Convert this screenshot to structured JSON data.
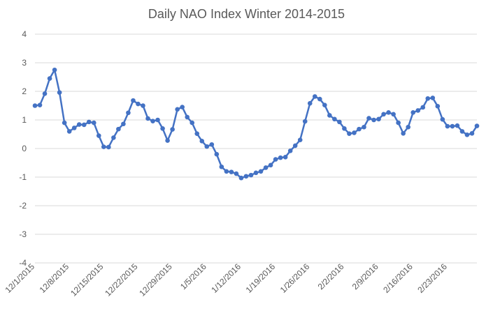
{
  "chart_data": {
    "type": "line",
    "title": "Daily NAO Index Winter 2014-2015",
    "xlabel": "",
    "ylabel": "",
    "ylim": [
      -4,
      4
    ],
    "yticks": [
      "4",
      "3",
      "2",
      "1",
      "0",
      "-1",
      "-2",
      "-3",
      "-4"
    ],
    "grid": true,
    "legend": "none",
    "x_tick_labels": [
      "12/1/2015",
      "12/8/2015",
      "12/15/2015",
      "12/22/2015",
      "12/29/2015",
      "1/5/2016",
      "1/12/2016",
      "1/19/2016",
      "1/26/2016",
      "2/2/2016",
      "2/9/2016",
      "2/16/2016",
      "2/23/2016"
    ],
    "x": [
      "12/1/2015",
      "12/2/2015",
      "12/3/2015",
      "12/4/2015",
      "12/5/2015",
      "12/6/2015",
      "12/7/2015",
      "12/8/2015",
      "12/9/2015",
      "12/10/2015",
      "12/11/2015",
      "12/12/2015",
      "12/13/2015",
      "12/14/2015",
      "12/15/2015",
      "12/16/2015",
      "12/17/2015",
      "12/18/2015",
      "12/19/2015",
      "12/20/2015",
      "12/21/2015",
      "12/22/2015",
      "12/23/2015",
      "12/24/2015",
      "12/25/2015",
      "12/26/2015",
      "12/27/2015",
      "12/28/2015",
      "12/29/2015",
      "12/30/2015",
      "12/31/2015",
      "1/1/2016",
      "1/2/2016",
      "1/3/2016",
      "1/4/2016",
      "1/5/2016",
      "1/6/2016",
      "1/7/2016",
      "1/8/2016",
      "1/9/2016",
      "1/10/2016",
      "1/11/2016",
      "1/12/2016",
      "1/13/2016",
      "1/14/2016",
      "1/15/2016",
      "1/16/2016",
      "1/17/2016",
      "1/18/2016",
      "1/19/2016",
      "1/20/2016",
      "1/21/2016",
      "1/22/2016",
      "1/23/2016",
      "1/24/2016",
      "1/25/2016",
      "1/26/2016",
      "1/27/2016",
      "1/28/2016",
      "1/29/2016",
      "1/30/2016",
      "1/31/2016",
      "2/1/2016",
      "2/2/2016",
      "2/3/2016",
      "2/4/2016",
      "2/5/2016",
      "2/6/2016",
      "2/7/2016",
      "2/8/2016",
      "2/9/2016",
      "2/10/2016",
      "2/11/2016",
      "2/12/2016",
      "2/13/2016",
      "2/14/2016",
      "2/15/2016",
      "2/16/2016",
      "2/17/2016",
      "2/18/2016",
      "2/19/2016",
      "2/20/2016",
      "2/21/2016",
      "2/22/2016",
      "2/23/2016",
      "2/24/2016",
      "2/25/2016",
      "2/26/2016",
      "2/27/2016",
      "2/28/2016",
      "2/29/2016"
    ],
    "series": [
      {
        "values": [
          1.5,
          1.52,
          1.92,
          2.45,
          2.75,
          1.96,
          0.9,
          0.6,
          0.72,
          0.84,
          0.83,
          0.93,
          0.9,
          0.45,
          0.06,
          0.05,
          0.38,
          0.68,
          0.86,
          1.25,
          1.68,
          1.56,
          1.5,
          1.05,
          0.96,
          1.0,
          0.7,
          0.28,
          0.67,
          1.37,
          1.45,
          1.1,
          0.9,
          0.52,
          0.26,
          0.07,
          0.14,
          -0.2,
          -0.64,
          -0.8,
          -0.82,
          -0.88,
          -1.03,
          -0.97,
          -0.93,
          -0.85,
          -0.8,
          -0.67,
          -0.58,
          -0.38,
          -0.32,
          -0.3,
          -0.08,
          0.1,
          0.3,
          0.95,
          1.58,
          1.82,
          1.73,
          1.52,
          1.16,
          1.03,
          0.93,
          0.7,
          0.52,
          0.55,
          0.68,
          0.75,
          1.06,
          1.0,
          1.03,
          1.2,
          1.26,
          1.2,
          0.9,
          0.53,
          0.75,
          1.26,
          1.33,
          1.44,
          1.75,
          1.77,
          1.48,
          1.02,
          0.78,
          0.78,
          0.8,
          0.6,
          0.48,
          0.53,
          0.79
        ]
      }
    ],
    "colors": {
      "line": "#4472C4",
      "grid": "#D9D9D9",
      "text": "#595959"
    }
  }
}
